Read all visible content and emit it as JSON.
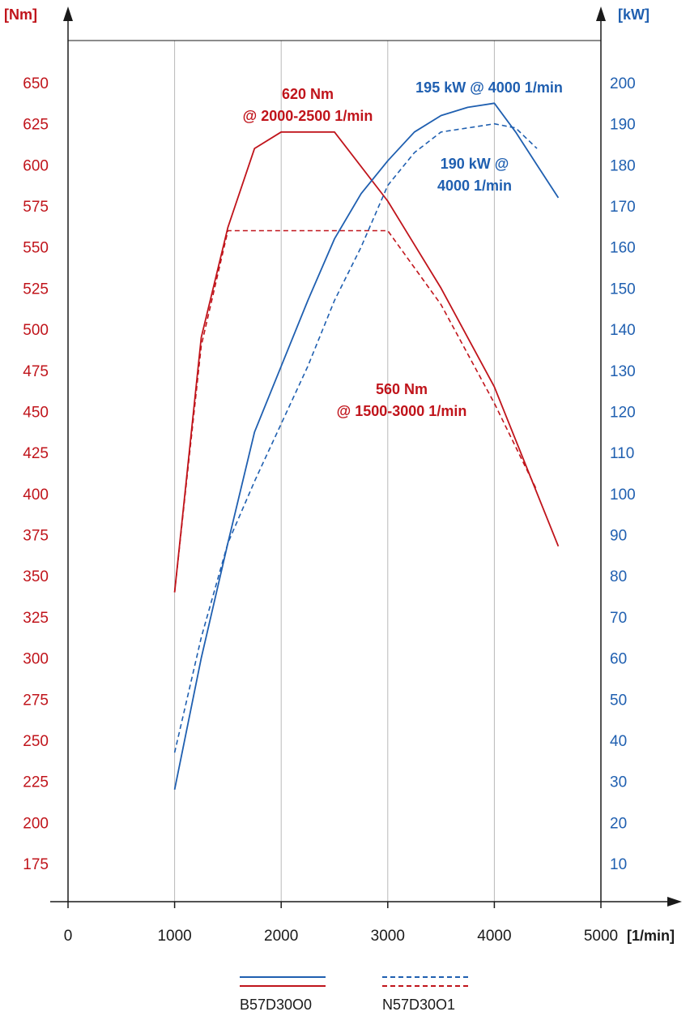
{
  "colors": {
    "torque": "#c0141b",
    "power": "#1f5fb0",
    "axis": "#1a1a1a",
    "grid": "#b8b8b8"
  },
  "chart_data": {
    "type": "line",
    "xlabel": "[1/min]",
    "ylabel_left": "[Nm]",
    "ylabel_right": "[kW]",
    "xlim": [
      0,
      5000
    ],
    "ylim_left": [
      150,
      650
    ],
    "ylim_right": [
      0,
      200
    ],
    "x_ticks": [
      "0",
      "1000",
      "2000",
      "3000",
      "4000",
      "5000"
    ],
    "y_left_ticks": [
      "175",
      "200",
      "225",
      "250",
      "275",
      "300",
      "325",
      "350",
      "375",
      "400",
      "425",
      "450",
      "475",
      "500",
      "525",
      "550",
      "575",
      "600",
      "625",
      "650"
    ],
    "y_right_ticks": [
      "10",
      "20",
      "30",
      "40",
      "50",
      "60",
      "70",
      "80",
      "90",
      "100",
      "110",
      "120",
      "130",
      "140",
      "150",
      "160",
      "170",
      "180",
      "190",
      "200"
    ],
    "grid": "vertical",
    "series": [
      {
        "engine": "B57D30O0",
        "quantity": "torque",
        "axis": "left",
        "style": "solid",
        "x": [
          1000,
          1250,
          1500,
          1750,
          2000,
          2500,
          3000,
          3500,
          4000,
          4600
        ],
        "y": [
          340,
          495,
          562,
          610,
          620,
          620,
          578,
          525,
          465,
          368
        ]
      },
      {
        "engine": "N57D30O1",
        "quantity": "torque",
        "axis": "left",
        "style": "dashed",
        "x": [
          1000,
          1250,
          1500,
          2000,
          2500,
          3000,
          3500,
          4000,
          4400
        ],
        "y": [
          340,
          490,
          560,
          560,
          560,
          560,
          515,
          455,
          402
        ]
      },
      {
        "engine": "B57D30O0",
        "quantity": "power",
        "axis": "right",
        "style": "solid",
        "x": [
          1000,
          1250,
          1500,
          1750,
          2000,
          2250,
          2500,
          2750,
          3000,
          3250,
          3500,
          3750,
          4000,
          4200,
          4400,
          4600
        ],
        "y": [
          28,
          60,
          88,
          115,
          131,
          147,
          162,
          173,
          181,
          188,
          192,
          194,
          195,
          188,
          180,
          172
        ]
      },
      {
        "engine": "N57D30O1",
        "quantity": "power",
        "axis": "right",
        "style": "dashed",
        "x": [
          1000,
          1250,
          1500,
          1750,
          2000,
          2250,
          2500,
          2750,
          3000,
          3250,
          3500,
          3750,
          4000,
          4200,
          4400
        ],
        "y": [
          37,
          65,
          88,
          103,
          117,
          131,
          147,
          160,
          175,
          183,
          188,
          189,
          190,
          189,
          184
        ]
      }
    ],
    "annotations": {
      "torque_b57_line1": "620 Nm",
      "torque_b57_line2": "@ 2000-2500 1/min",
      "torque_n57_line1": "560 Nm",
      "torque_n57_line2": "@ 1500-3000 1/min",
      "power_b57": "195 kW @ 4000 1/min",
      "power_n57_line1": "190 kW @",
      "power_n57_line2": "4000 1/min"
    },
    "legend": {
      "placement": "bottom",
      "items": [
        "B57D30O0",
        "N57D30O1"
      ]
    }
  }
}
